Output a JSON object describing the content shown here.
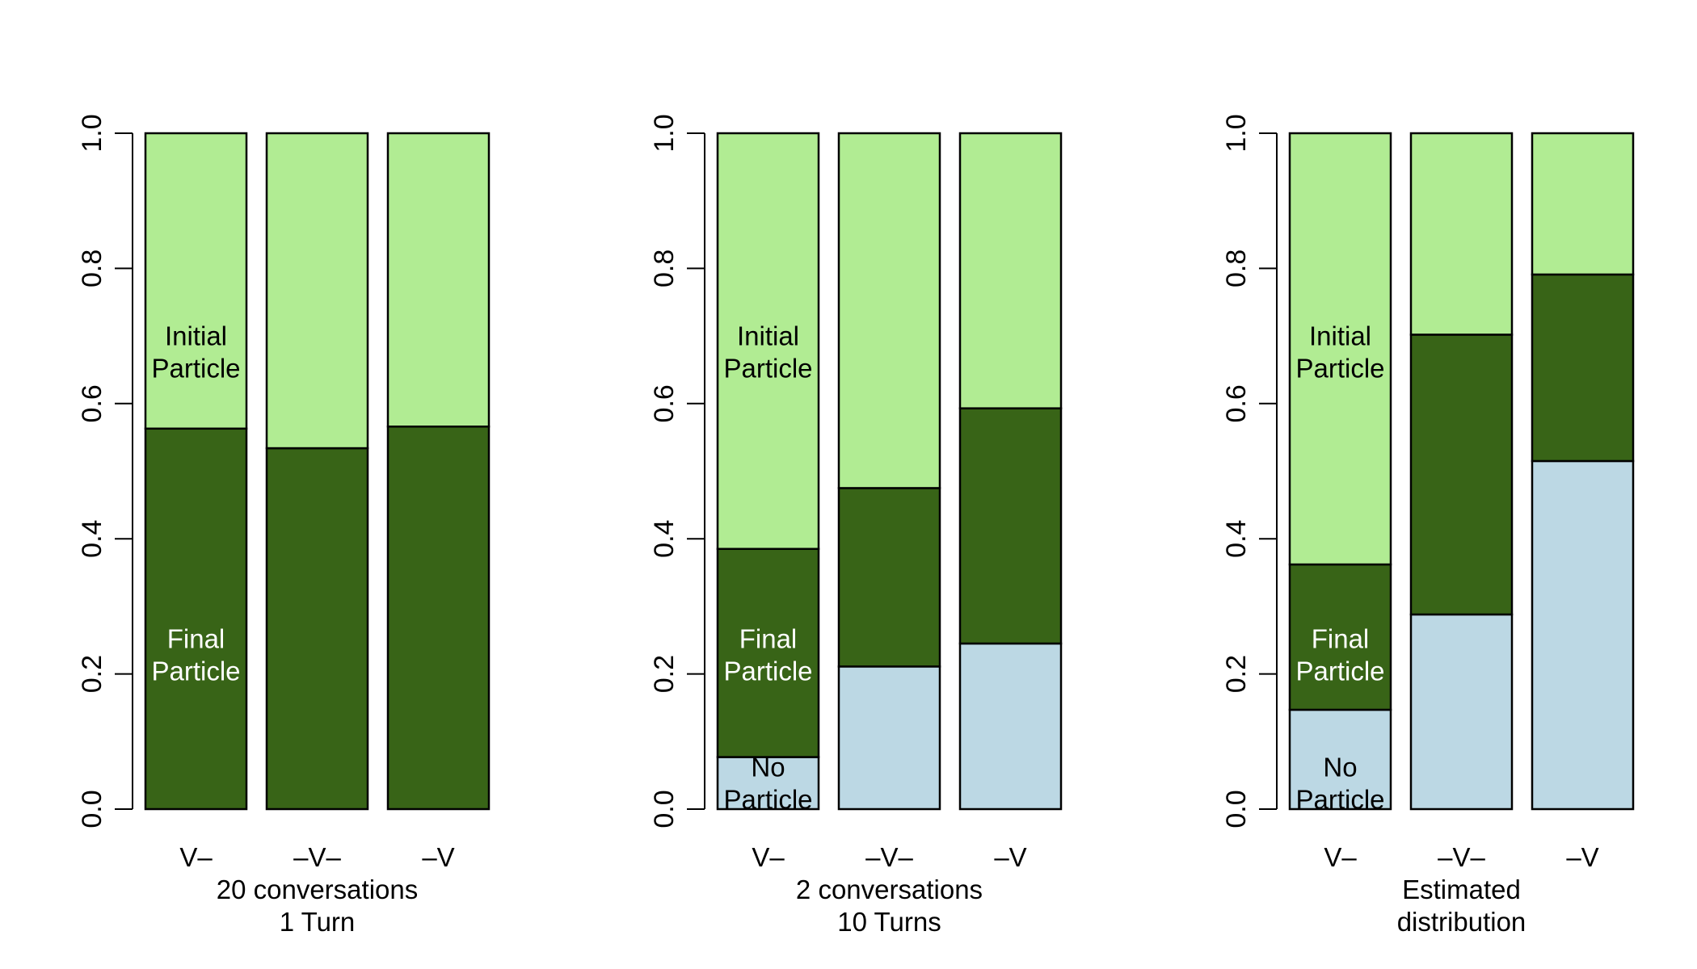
{
  "chart_data": [
    {
      "type": "bar",
      "stacked": true,
      "categories": [
        "V–",
        "–V–",
        "–V"
      ],
      "xlabel": [
        "20 conversations",
        "1 Turn"
      ],
      "ylabel": "",
      "ylim": [
        0,
        1
      ],
      "yticks": [
        "0.0",
        "0.2",
        "0.4",
        "0.6",
        "0.8",
        "1.0"
      ],
      "series": [
        {
          "name": "No Particle",
          "values": [
            0.0,
            0.0,
            0.0
          ],
          "color": "#bcd8e4"
        },
        {
          "name": "Final Particle",
          "values": [
            0.563,
            0.534,
            0.566
          ],
          "color": "#386417"
        },
        {
          "name": "Initial Particle",
          "values": [
            0.437,
            0.466,
            0.434
          ],
          "color": "#b1ec93"
        }
      ],
      "annotations": [
        {
          "bar": 0,
          "series": "Initial Particle",
          "lines": [
            "Initial",
            "Particle"
          ],
          "color": "#000000"
        },
        {
          "bar": 0,
          "series": "Final Particle",
          "lines": [
            "Final",
            "Particle"
          ],
          "color": "#ffffff"
        }
      ]
    },
    {
      "type": "bar",
      "stacked": true,
      "categories": [
        "V–",
        "–V–",
        "–V"
      ],
      "xlabel": [
        "2 conversations",
        "10 Turns"
      ],
      "ylabel": "",
      "ylim": [
        0,
        1
      ],
      "yticks": [
        "0.0",
        "0.2",
        "0.4",
        "0.6",
        "0.8",
        "1.0"
      ],
      "series": [
        {
          "name": "No Particle",
          "values": [
            0.077,
            0.211,
            0.245
          ],
          "color": "#bcd8e4"
        },
        {
          "name": "Final Particle",
          "values": [
            0.308,
            0.264,
            0.348
          ],
          "color": "#386417"
        },
        {
          "name": "Initial Particle",
          "values": [
            0.615,
            0.525,
            0.407
          ],
          "color": "#b1ec93"
        }
      ],
      "annotations": [
        {
          "bar": 0,
          "series": "Initial Particle",
          "lines": [
            "Initial",
            "Particle"
          ],
          "color": "#000000"
        },
        {
          "bar": 0,
          "series": "Final Particle",
          "lines": [
            "Final",
            "Particle"
          ],
          "color": "#ffffff"
        },
        {
          "bar": 0,
          "series": "No Particle",
          "lines": [
            "No",
            "Particle"
          ],
          "color": "#000000"
        }
      ]
    },
    {
      "type": "bar",
      "stacked": true,
      "categories": [
        "V–",
        "–V–",
        "–V"
      ],
      "xlabel": [
        "Estimated",
        "distribution"
      ],
      "ylabel": "",
      "ylim": [
        0,
        1
      ],
      "yticks": [
        "0.0",
        "0.2",
        "0.4",
        "0.6",
        "0.8",
        "1.0"
      ],
      "series": [
        {
          "name": "No Particle",
          "values": [
            0.147,
            0.288,
            0.515
          ],
          "color": "#bcd8e4"
        },
        {
          "name": "Final Particle",
          "values": [
            0.215,
            0.414,
            0.276
          ],
          "color": "#386417"
        },
        {
          "name": "Initial Particle",
          "values": [
            0.638,
            0.298,
            0.209
          ],
          "color": "#b1ec93"
        }
      ],
      "annotations": [
        {
          "bar": 0,
          "series": "Initial Particle",
          "lines": [
            "Initial",
            "Particle"
          ],
          "color": "#000000"
        },
        {
          "bar": 0,
          "series": "Final Particle",
          "lines": [
            "Final",
            "Particle"
          ],
          "color": "#ffffff"
        },
        {
          "bar": 0,
          "series": "No Particle",
          "lines": [
            "No",
            "Particle"
          ],
          "color": "#000000"
        }
      ]
    }
  ]
}
